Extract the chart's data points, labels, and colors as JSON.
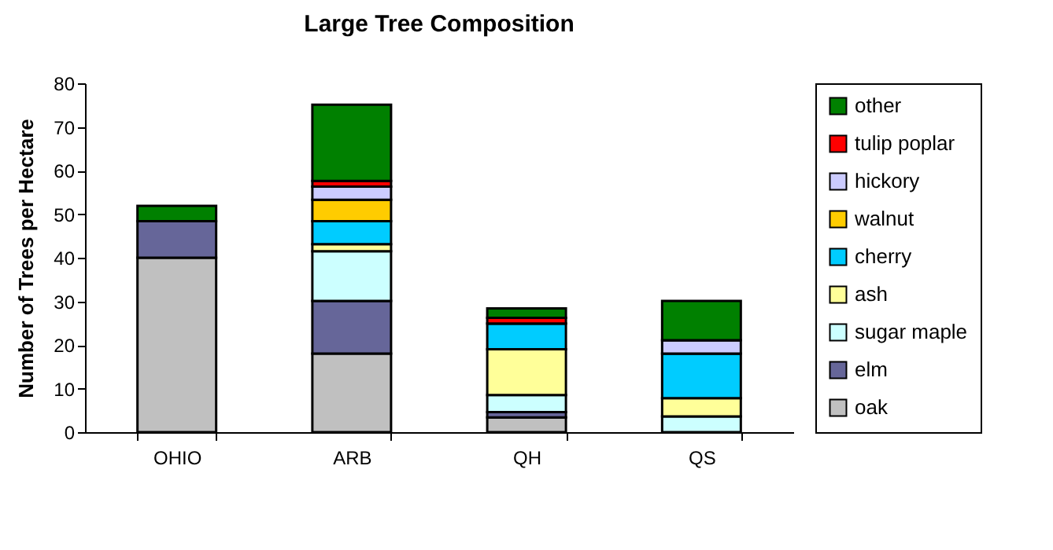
{
  "chart_data": {
    "type": "bar",
    "title": "Large Tree Composition",
    "ylabel": "Number of Trees per Hectare",
    "categories": [
      "OHIO",
      "ARB",
      "QH",
      "QS"
    ],
    "stacked": true,
    "series": [
      {
        "name": "oak",
        "color": "#c0c0c0",
        "values": [
          40,
          18,
          3.4,
          0
        ]
      },
      {
        "name": "elm",
        "color": "#666699",
        "values": [
          8.4,
          12.1,
          1.2,
          0
        ]
      },
      {
        "name": "sugar maple",
        "color": "#ccffff",
        "values": [
          0,
          11.4,
          3.9,
          3.6
        ]
      },
      {
        "name": "ash",
        "color": "#ffff99",
        "values": [
          0,
          1.6,
          10.5,
          4.2
        ]
      },
      {
        "name": "cherry",
        "color": "#00ccff",
        "values": [
          null,
          5.3,
          5.9,
          10.2
        ]
      },
      {
        "name": "walnut",
        "color": "#ffcc00",
        "values": [
          0,
          4.9,
          0,
          0
        ]
      },
      {
        "name": "hickory",
        "color": "#ccccff",
        "values": [
          0,
          3,
          0,
          3.1
        ]
      },
      {
        "name": "tulip poplar",
        "color": "#ff0000",
        "values": [
          0,
          1.3,
          1.3,
          0
        ]
      },
      {
        "name": "other",
        "color": "#008000",
        "values": [
          3.5,
          17.5,
          2.2,
          9
        ]
      }
    ],
    "ylim": [
      0,
      80
    ],
    "yticks": [
      0,
      10,
      20,
      30,
      40,
      50,
      60,
      70,
      80
    ],
    "grid": false,
    "legend": "right"
  }
}
